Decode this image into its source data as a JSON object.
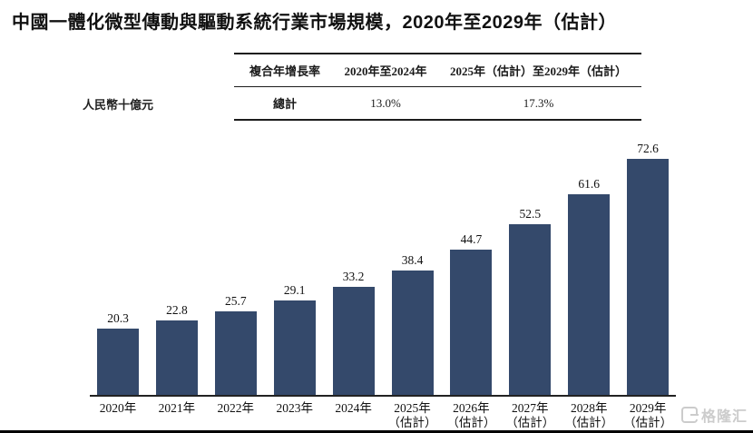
{
  "title": "中國一體化微型傳動與驅動系統行業市場規模，2020年至2029年（估計）",
  "y_axis_unit": "人民幣十億元",
  "cagr_table": {
    "headers": [
      "複合年增長率",
      "2020年至2024年",
      "2025年（估計）至2029年（估計）"
    ],
    "rows": [
      {
        "label": "總計",
        "cagr_2020_2024": "13.0%",
        "cagr_2025_2029": "17.3%"
      }
    ]
  },
  "chart_data": {
    "type": "bar",
    "title": "中國一體化微型傳動與驅動系統行業市場規模，2020年至2029年（估計）",
    "ylabel": "人民幣十億元",
    "xlabel": "",
    "ylim": [
      0,
      80
    ],
    "grid": false,
    "legend_position": "none",
    "bar_color": "#34496B",
    "categories": [
      {
        "year": "2020年",
        "note": ""
      },
      {
        "year": "2021年",
        "note": ""
      },
      {
        "year": "2022年",
        "note": ""
      },
      {
        "year": "2023年",
        "note": ""
      },
      {
        "year": "2024年",
        "note": ""
      },
      {
        "year": "2025年",
        "note": "（估計）"
      },
      {
        "year": "2026年",
        "note": "（估計）"
      },
      {
        "year": "2027年",
        "note": "（估計）"
      },
      {
        "year": "2028年",
        "note": "（估計）"
      },
      {
        "year": "2029年",
        "note": "（估計）"
      }
    ],
    "values": [
      20.3,
      22.8,
      25.7,
      29.1,
      33.2,
      38.4,
      44.7,
      52.5,
      61.6,
      72.6
    ]
  },
  "watermark": {
    "text": "格隆汇"
  },
  "colors": {
    "bar": "#34496B",
    "text": "#111111",
    "rule": "#1c1c1c",
    "watermark": "#cccccc"
  }
}
